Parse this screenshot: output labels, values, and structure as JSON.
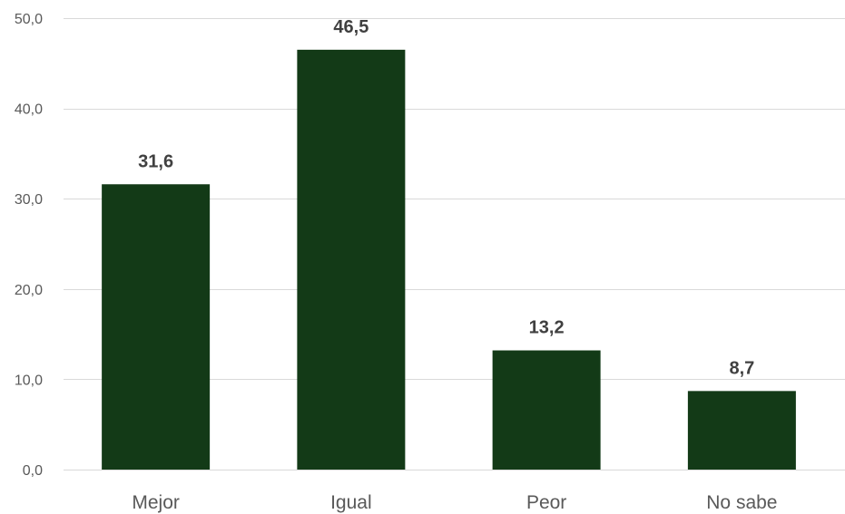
{
  "chart_data": {
    "type": "bar",
    "title": "",
    "xlabel": "",
    "ylabel": "",
    "categories": [
      "Mejor",
      "Igual",
      "Peor",
      "No sabe"
    ],
    "values": [
      31.6,
      46.5,
      13.2,
      8.7
    ],
    "value_labels": [
      "31,6",
      "46,5",
      "13,2",
      "8,7"
    ],
    "ylim": [
      0,
      50
    ],
    "y_ticks": [
      0,
      10,
      20,
      30,
      40,
      50
    ],
    "y_tick_labels": [
      "0,0",
      "10,0",
      "20,0",
      "30,0",
      "40,0",
      "50,0"
    ],
    "grid": true,
    "legend": "none",
    "colors": {
      "bar": "#133a17",
      "grid": "#d9d9d9",
      "tick_text": "#595959",
      "label_text": "#404040"
    }
  }
}
